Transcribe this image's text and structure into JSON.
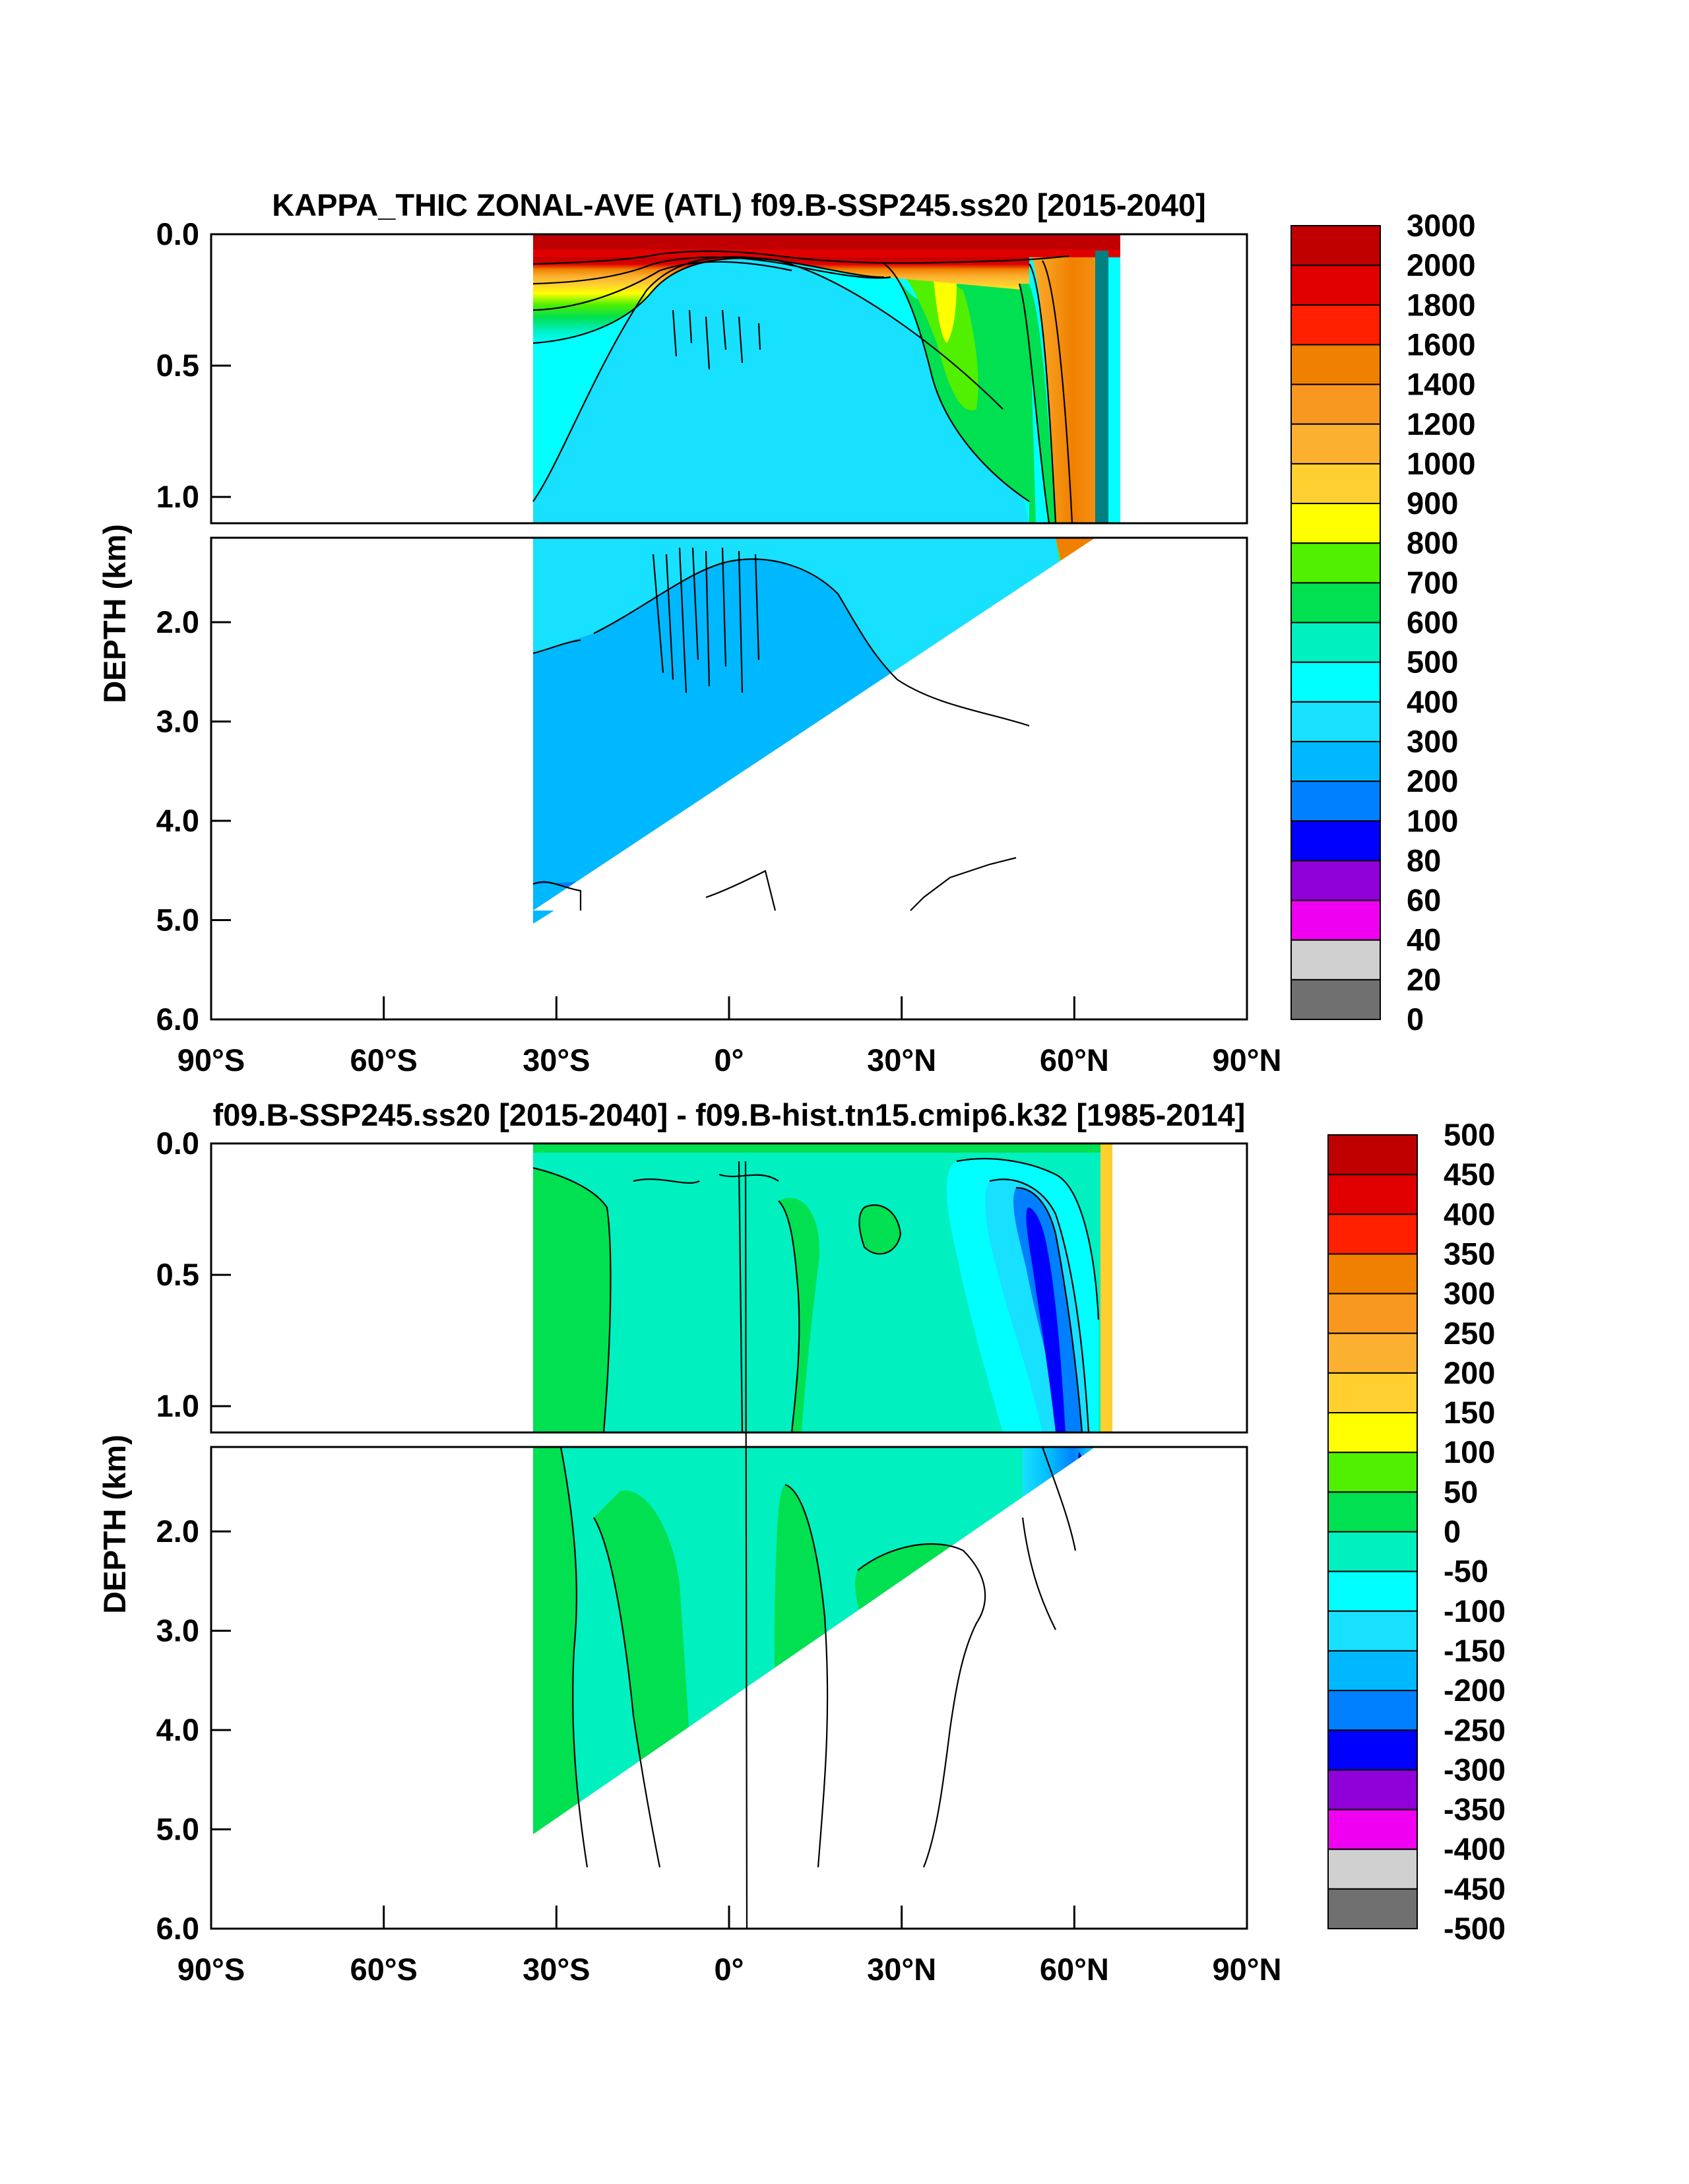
{
  "chart_data": [
    {
      "type": "heatmap",
      "title": "KAPPA_THIC ZONAL-AVE (ATL) f09.B-SSP245.ss20 [2015-2040]",
      "ylabel": "DEPTH (km)",
      "xlabel": "",
      "x_ticks": [
        "90°S",
        "60°S",
        "30°S",
        "0°",
        "30°N",
        "60°N",
        "90°N"
      ],
      "x_tick_values": [
        -90,
        -60,
        -30,
        0,
        30,
        60,
        90
      ],
      "xlim": [
        -90,
        90
      ],
      "y_upper_ticks": [
        "0.0",
        "0.5",
        "1.0"
      ],
      "y_upper_values": [
        0,
        0.5,
        1.0
      ],
      "y_upper_range": [
        0,
        1.1
      ],
      "y_lower_ticks": [
        "2.0",
        "3.0",
        "4.0",
        "5.0",
        "6.0"
      ],
      "y_lower_values": [
        2.0,
        3.0,
        4.0,
        5.0,
        6.0
      ],
      "y_lower_range": [
        1.15,
        6.0
      ],
      "data_extent_lat": [
        -34,
        68
      ],
      "colorbar_labels": [
        "3000",
        "2000",
        "1800",
        "1600",
        "1400",
        "1200",
        "1000",
        "900",
        "800",
        "700",
        "600",
        "500",
        "400",
        "300",
        "200",
        "100",
        "80",
        "60",
        "40",
        "20",
        "0"
      ],
      "colorbar_colors": [
        "#c00000",
        "#e00000",
        "#ff2000",
        "#f08000",
        "#f89820",
        "#fcb030",
        "#ffd030",
        "#ffff00",
        "#50f000",
        "#00e050",
        "#00f0c0",
        "#00ffff",
        "#18e0ff",
        "#00b8ff",
        "#0080ff",
        "#0000ff",
        "#9000d8",
        "#f000f0",
        "#d0d0d0",
        "#707070"
      ],
      "fields": {
        "surface_band": {
          "lat_range": [
            -34,
            68
          ],
          "depth_km": [
            0,
            0.08
          ],
          "value_range": [
            1400,
            3000
          ]
        },
        "subtropical_shallow": {
          "lat_range": [
            -34,
            60
          ],
          "depth_km": [
            0.05,
            0.4
          ],
          "value_range": [
            500,
            1400
          ]
        },
        "subpolar_north_upper": {
          "lat_range": [
            52,
            68
          ],
          "depth_km": [
            0,
            1.4
          ],
          "value_range": [
            1000,
            1600
          ]
        },
        "north_atlantic_upper": {
          "lat_range": [
            25,
            52
          ],
          "depth_km": [
            0.2,
            1.1
          ],
          "value_range": [
            600,
            800
          ]
        },
        "intermediate": {
          "lat_range": [
            -34,
            60
          ],
          "depth_km": [
            0.3,
            2.5
          ],
          "value_range": [
            300,
            400
          ]
        },
        "deep": {
          "lat_range": [
            -34,
            55
          ],
          "depth_km": [
            2.5,
            5.0
          ],
          "value_range": [
            200,
            300
          ]
        },
        "abyssal": {
          "lat_range": [
            -34,
            48
          ],
          "depth_km": [
            4.8,
            5.4
          ],
          "value_range": [
            100,
            200
          ]
        }
      }
    },
    {
      "type": "heatmap",
      "title": "f09.B-SSP245.ss20 [2015-2040] - f09.B-hist.tn15.cmip6.k32 [1985-2014]",
      "ylabel": "DEPTH (km)",
      "xlabel": "",
      "x_ticks": [
        "90°S",
        "60°S",
        "30°S",
        "0°",
        "30°N",
        "60°N",
        "90°N"
      ],
      "x_tick_values": [
        -90,
        -60,
        -30,
        0,
        30,
        60,
        90
      ],
      "xlim": [
        -90,
        90
      ],
      "y_upper_ticks": [
        "0.0",
        "0.5",
        "1.0"
      ],
      "y_upper_values": [
        0,
        0.5,
        1.0
      ],
      "y_upper_range": [
        0,
        1.1
      ],
      "y_lower_ticks": [
        "2.0",
        "3.0",
        "4.0",
        "5.0",
        "6.0"
      ],
      "y_lower_values": [
        2.0,
        3.0,
        4.0,
        5.0,
        6.0
      ],
      "y_lower_range": [
        1.15,
        6.0
      ],
      "data_extent_lat": [
        -34,
        68
      ],
      "colorbar_labels": [
        "500",
        "450",
        "400",
        "350",
        "300",
        "250",
        "200",
        "150",
        "100",
        "50",
        "0",
        "-50",
        "-100",
        "-150",
        "-200",
        "-250",
        "-300",
        "-350",
        "-400",
        "-450",
        "-500"
      ],
      "colorbar_colors": [
        "#c00000",
        "#e00000",
        "#ff2000",
        "#f08000",
        "#f89820",
        "#fcb030",
        "#ffd030",
        "#ffff00",
        "#50f000",
        "#00e050",
        "#00f0c0",
        "#00ffff",
        "#18e0ff",
        "#00b8ff",
        "#0080ff",
        "#0000ff",
        "#9000d8",
        "#f000f0",
        "#d0d0d0",
        "#707070"
      ],
      "fields": {
        "background": {
          "lat_range": [
            -34,
            68
          ],
          "depth_km": [
            0,
            5.4
          ],
          "value_range": [
            -50,
            0
          ]
        },
        "positive_patches": {
          "value_range": [
            0,
            50
          ]
        },
        "subpolar_north_negative": {
          "lat_range": [
            45,
            65
          ],
          "depth_km": [
            0,
            2.5
          ],
          "value_range": [
            -300,
            -50
          ]
        }
      }
    }
  ]
}
